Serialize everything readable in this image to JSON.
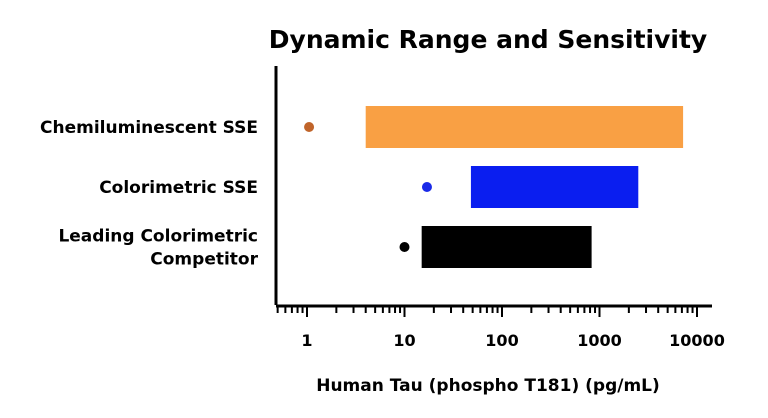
{
  "chart_data": {
    "type": "bar",
    "title": "Dynamic Range and Sensitivity",
    "xlabel": "Human Tau (phospho T181) (pg/mL)",
    "ylabel": "",
    "x_scale": "log",
    "xlim": [
      0.5,
      10000
    ],
    "x_ticks": [
      1,
      10,
      100,
      1000,
      10000
    ],
    "x_tick_labels": [
      "1",
      "10",
      "100",
      "1000",
      "10000"
    ],
    "grid": false,
    "legend": "none",
    "series": [
      {
        "category": [
          "Chemiluminescent SSE"
        ],
        "dot": 1.05,
        "range": [
          4,
          7200
        ],
        "color": "#f9a044",
        "dot_color": "#c0642a"
      },
      {
        "category": [
          "Colorimetric SSE"
        ],
        "dot": 17,
        "range": [
          48,
          2500
        ],
        "color": "#0a1ef0",
        "dot_color": "#1a2ae8"
      },
      {
        "category": [
          "Leading Colorimetric",
          "Competitor"
        ],
        "dot": 10,
        "range": [
          15,
          830
        ],
        "color": "#000000",
        "dot_color": "#000000"
      }
    ]
  }
}
